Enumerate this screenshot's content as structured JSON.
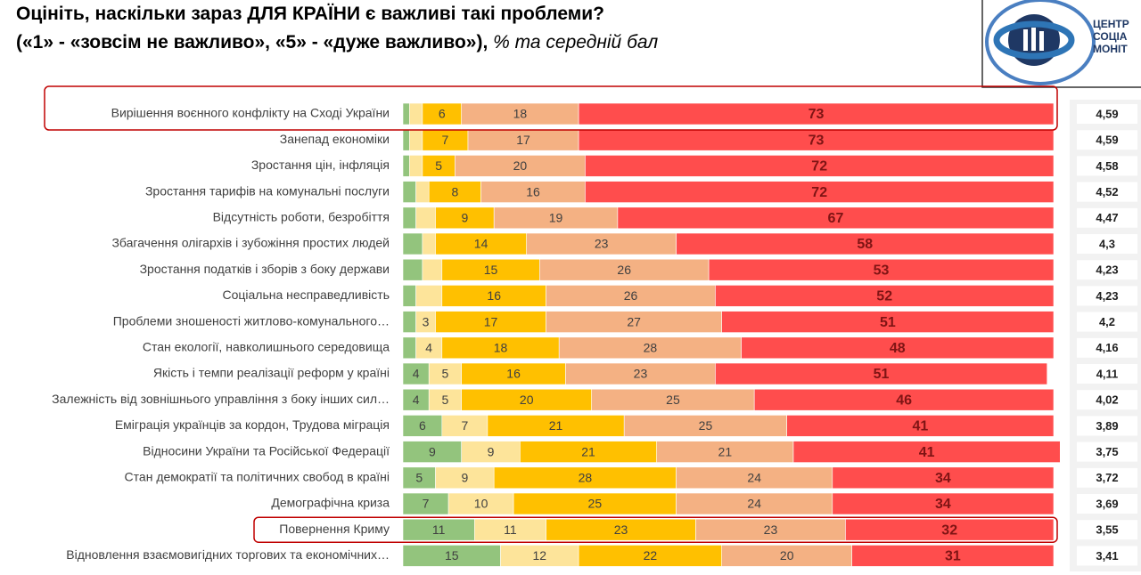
{
  "chart_data": {
    "type": "stacked_barh",
    "title": "Оцініть, наскільки зараз ДЛЯ КРАЇНИ є важливі такі проблеми?",
    "subtitle": "(«1» - «зовсім не важливо», «5» - «дуже важливо»),",
    "subtitle_note": "% та середній бал",
    "logo_text": [
      "ЦЕНТР",
      "СОЦІА",
      "МОНІТ"
    ],
    "categories": [
      "Вирішення воєнного конфлікту на Сході України",
      "Занепад економіки",
      "Зростання цін, інфляція",
      "Зростання тарифів на комунальні послуги",
      "Відсутність роботи, безробіття",
      "Збагачення олігархів і зубожіння простих людей",
      "Зростання податків і зборів з боку держави",
      "Соціальна несправедливість",
      "Проблеми зношеності житлово-комунального…",
      "Стан екології, навколишнього середовища",
      "Якість і темпи реалізації реформ у країні",
      "Залежність від зовнішнього управління з боку інших сил…",
      "Еміграція українців за кордон, Трудова міграція",
      "Відносини України та Російської Федерації",
      "Стан демократії та політичних свобод в країні",
      "Демографічна криза",
      "Повернення Криму",
      "Відновлення взаємовигідних торгових та економічних…"
    ],
    "highlighted": [
      0,
      16
    ],
    "xlim": [
      0,
      100
    ],
    "series": [
      {
        "color": "#93c47d",
        "values": [
          1,
          1,
          1,
          2,
          2,
          3,
          3,
          2,
          2,
          2,
          4,
          4,
          6,
          9,
          5,
          7,
          11,
          15
        ],
        "value_labels": [
          null,
          null,
          null,
          null,
          null,
          null,
          null,
          null,
          null,
          null,
          "4",
          "4",
          "6",
          "9",
          "5",
          "7",
          "11",
          "15"
        ]
      },
      {
        "color": "#fde49a",
        "values": [
          2,
          2,
          2,
          2,
          3,
          2,
          3,
          4,
          3,
          4,
          5,
          5,
          7,
          9,
          9,
          10,
          11,
          12
        ],
        "value_labels": [
          null,
          null,
          null,
          null,
          null,
          null,
          null,
          null,
          "3",
          "4",
          "5",
          "5",
          "7",
          "9",
          "9",
          "10",
          "11",
          "12"
        ]
      },
      {
        "color": "#ffc000",
        "values": [
          6,
          7,
          5,
          8,
          9,
          14,
          15,
          16,
          17,
          18,
          16,
          20,
          21,
          21,
          28,
          25,
          23,
          22
        ],
        "value_labels": [
          "6",
          "7",
          "5",
          "8",
          "9",
          "14",
          "15",
          "16",
          "17",
          "18",
          "16",
          "20",
          "21",
          "21",
          "28",
          "25",
          "23",
          "22"
        ]
      },
      {
        "color": "#f4b183",
        "values": [
          18,
          17,
          20,
          16,
          19,
          23,
          26,
          26,
          27,
          28,
          23,
          25,
          25,
          21,
          24,
          24,
          23,
          20
        ],
        "value_labels": [
          "18",
          "17",
          "20",
          "16",
          "19",
          "23",
          "26",
          "26",
          "27",
          "28",
          "23",
          "25",
          "25",
          "21",
          "24",
          "24",
          "23",
          "20"
        ]
      },
      {
        "color": "#ff4d4d",
        "values": [
          73,
          73,
          72,
          72,
          67,
          58,
          53,
          52,
          51,
          48,
          51,
          46,
          41,
          41,
          34,
          34,
          32,
          31
        ],
        "value_labels": [
          "73",
          "73",
          "72",
          "72",
          "67",
          "58",
          "53",
          "52",
          "51",
          "48",
          "51",
          "46",
          "41",
          "41",
          "34",
          "34",
          "32",
          "31"
        ]
      }
    ],
    "averages": {
      "values": [
        4.59,
        4.59,
        4.58,
        4.52,
        4.47,
        4.3,
        4.23,
        4.23,
        4.2,
        4.16,
        4.11,
        4.02,
        3.89,
        3.75,
        3.72,
        3.69,
        3.55,
        3.41
      ],
      "value_labels": [
        "4,59",
        "4,59",
        "4,58",
        "4,52",
        "4,47",
        "4,3",
        "4,23",
        "4,23",
        "4,2",
        "4,16",
        "4,11",
        "4,02",
        "3,89",
        "3,75",
        "3,72",
        "3,69",
        "3,55",
        "3,41"
      ]
    }
  }
}
